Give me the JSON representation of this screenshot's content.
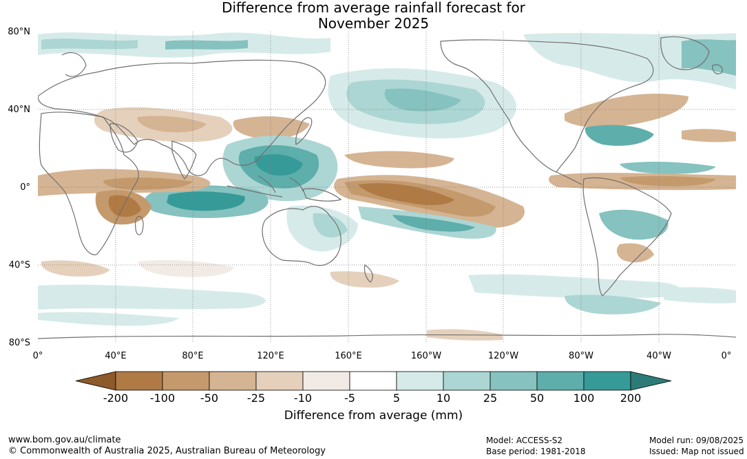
{
  "title_line1": "Difference from average rainfall forecast for",
  "title_line2": "November 2025",
  "latitude_labels": [
    "80°N",
    "40°N",
    "0°",
    "40°S",
    "80°S"
  ],
  "longitude_labels": [
    "0°",
    "40°E",
    "80°E",
    "120°E",
    "160°E",
    "160°W",
    "120°W",
    "80°W",
    "40°W",
    "0°"
  ],
  "legend": {
    "title": "Difference from average (mm)",
    "tick_labels": [
      "-200",
      "-100",
      "-50",
      "-25",
      "-10",
      "-5",
      "5",
      "10",
      "25",
      "50",
      "100",
      "200"
    ],
    "colors": [
      "#8c5a2b",
      "#b07a45",
      "#c49a6c",
      "#d5b493",
      "#e5d0bc",
      "#f2ebe5",
      "#ffffff",
      "#d6ebe9",
      "#acd6d3",
      "#86c2bf",
      "#5eaeab",
      "#369b98",
      "#2b7b78"
    ]
  },
  "footer": {
    "website": "www.bom.gov.au/climate",
    "copyright": "© Commonwealth of Australia 2025, Australian Bureau of Meteorology",
    "model": "Model: ACCESS-S2",
    "base_period": "Base period: 1981-2018",
    "model_run": "Model run: 09/08/2025",
    "issued": "Issued: Map not issued"
  }
}
